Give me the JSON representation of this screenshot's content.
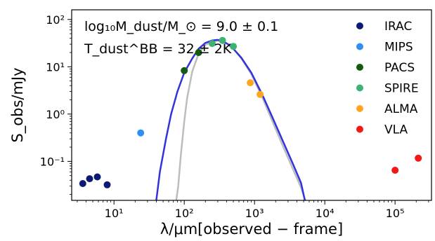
{
  "chart_data": {
    "type": "scatter",
    "xscale": "log",
    "yscale": "log",
    "xlim": [
      2.5,
      330000
    ],
    "ylim": [
      0.015,
      160
    ],
    "grid": false,
    "legend_position": "top-right",
    "xlabel": "λ/μm[observed − frame]",
    "ylabel": "S_obs/mJy",
    "annotation_line1": "log₁₀M_dust/M_⊙ = 9.0 ± 0.1",
    "annotation_line2": "T_dust^BB = 32 ± 2K",
    "x_ticks": [
      {
        "value": 10,
        "label": "10¹"
      },
      {
        "value": 100,
        "label": "10²"
      },
      {
        "value": 1000,
        "label": "10³"
      },
      {
        "value": 10000,
        "label": "10⁴"
      },
      {
        "value": 100000,
        "label": "10⁵"
      }
    ],
    "y_ticks": [
      {
        "value": 0.1,
        "label": "10⁻¹"
      },
      {
        "value": 1,
        "label": "10⁰"
      },
      {
        "value": 10,
        "label": "10¹"
      },
      {
        "value": 100,
        "label": "10²"
      }
    ],
    "series": [
      {
        "name": "IRAC",
        "color": "#0c1a73",
        "points": [
          [
            3.6,
            0.034
          ],
          [
            4.5,
            0.043
          ],
          [
            5.8,
            0.047
          ],
          [
            8.0,
            0.032
          ]
        ]
      },
      {
        "name": "MIPS",
        "color": "#2e8ff5",
        "points": [
          [
            24,
            0.4
          ]
        ]
      },
      {
        "name": "PACS",
        "color": "#155a12",
        "points": [
          [
            100,
            8.3
          ],
          [
            160,
            20
          ]
        ]
      },
      {
        "name": "SPIRE",
        "color": "#3cb371",
        "points": [
          [
            250,
            31
          ],
          [
            350,
            36
          ],
          [
            500,
            27
          ]
        ]
      },
      {
        "name": "ALMA",
        "color": "#ffa51f",
        "points": [
          [
            870,
            4.6
          ],
          [
            1200,
            2.6
          ]
        ]
      },
      {
        "name": "VLA",
        "color": "#f51616",
        "points": [
          [
            100000,
            0.065
          ],
          [
            214000,
            0.117
          ]
        ]
      }
    ],
    "curves": [
      {
        "color": "#bdbdbd",
        "points": [
          [
            77,
            0.015
          ],
          [
            82,
            0.03
          ],
          [
            90,
            0.15
          ],
          [
            100,
            0.7
          ],
          [
            110,
            2.2
          ],
          [
            130,
            8
          ],
          [
            160,
            19
          ],
          [
            200,
            29
          ],
          [
            250,
            34
          ],
          [
            300,
            35.5
          ],
          [
            350,
            34.5
          ],
          [
            420,
            30
          ],
          [
            500,
            24
          ],
          [
            650,
            15
          ],
          [
            900,
            7
          ],
          [
            1300,
            2.2
          ],
          [
            1800,
            0.7
          ],
          [
            2500,
            0.22
          ],
          [
            3500,
            0.07
          ],
          [
            4600,
            0.028
          ],
          [
            5300,
            0.015
          ]
        ]
      },
      {
        "color": "#3333dd",
        "points": [
          [
            40,
            0.015
          ],
          [
            45,
            0.06
          ],
          [
            55,
            0.3
          ],
          [
            65,
            1.0
          ],
          [
            80,
            3.0
          ],
          [
            100,
            7.5
          ],
          [
            130,
            15
          ],
          [
            160,
            24
          ],
          [
            200,
            32
          ],
          [
            250,
            36
          ],
          [
            300,
            37
          ],
          [
            350,
            35
          ],
          [
            420,
            30
          ],
          [
            500,
            24
          ],
          [
            650,
            15.5
          ],
          [
            900,
            7.5
          ],
          [
            1300,
            2.5
          ],
          [
            1800,
            0.85
          ],
          [
            2500,
            0.28
          ],
          [
            3500,
            0.09
          ],
          [
            4600,
            0.035
          ],
          [
            5200,
            0.015
          ]
        ]
      }
    ]
  }
}
